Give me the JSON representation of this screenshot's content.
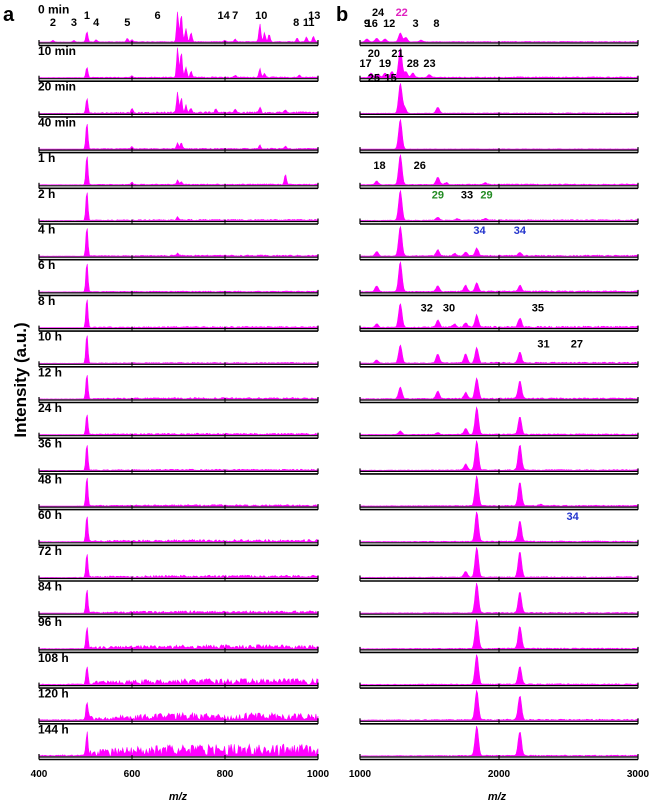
{
  "figure": {
    "panel_a_letter": "a",
    "panel_b_letter": "b",
    "ylabel": "Intensity (a.u.)",
    "spectrum_color": "#ff00ff",
    "time_labels": [
      "0 min",
      "10 min",
      "20 min",
      "40 min",
      "1 h",
      "2 h",
      "4 h",
      "6 h",
      "8 h",
      "10 h",
      "12 h",
      "24 h",
      "36 h",
      "48 h",
      "60 h",
      "72 h",
      "84 h",
      "96 h",
      "108 h",
      "120 h",
      "144 h"
    ]
  },
  "chart_data": [
    {
      "type": "line",
      "panel": "a",
      "xlabel": "m/z",
      "xlim": [
        400,
        1000
      ],
      "xticks": [
        "400",
        "600",
        "800",
        "1000"
      ],
      "ylabel": "Intensity (a.u.)",
      "y_scale": "relative, each trace normalized to its own strongest peak",
      "series_names": [
        "0 min",
        "10 min",
        "20 min",
        "40 min",
        "1 h",
        "2 h",
        "4 h",
        "6 h",
        "8 h",
        "10 h",
        "12 h",
        "24 h",
        "36 h",
        "48 h",
        "60 h",
        "72 h",
        "84 h",
        "96 h",
        "108 h",
        "120 h",
        "144 h"
      ],
      "peak_labels": [
        {
          "text": "2",
          "x": 430,
          "color": "#000000"
        },
        {
          "text": "3",
          "x": 475,
          "color": "#000000"
        },
        {
          "text": "1",
          "x": 503,
          "color": "#000000"
        },
        {
          "text": "4",
          "x": 523,
          "color": "#000000"
        },
        {
          "text": "5",
          "x": 590,
          "color": "#000000"
        },
        {
          "text": "6",
          "x": 655,
          "color": "#000000"
        },
        {
          "text": "14",
          "x": 797,
          "color": "#000000"
        },
        {
          "text": "7",
          "x": 822,
          "color": "#000000"
        },
        {
          "text": "10",
          "x": 878,
          "color": "#000000"
        },
        {
          "text": "8",
          "x": 953,
          "color": "#000000"
        },
        {
          "text": "11",
          "x": 980,
          "color": "#000000"
        },
        {
          "text": "13",
          "x": 992,
          "color": "#000000"
        }
      ],
      "traces": [
        {
          "peaks": [
            [
              430,
              0.06
            ],
            [
              475,
              0.05
            ],
            [
              503,
              0.35
            ],
            [
              523,
              0.08
            ],
            [
              590,
              0.12
            ],
            [
              600,
              0.08
            ],
            [
              698,
              1.0
            ],
            [
              706,
              0.95
            ],
            [
              716,
              0.45
            ],
            [
              727,
              0.3
            ],
            [
              800,
              0.05
            ],
            [
              822,
              0.1
            ],
            [
              875,
              0.6
            ],
            [
              885,
              0.3
            ],
            [
              895,
              0.25
            ],
            [
              955,
              0.12
            ],
            [
              975,
              0.15
            ],
            [
              990,
              0.18
            ]
          ],
          "noise": 0.02
        },
        {
          "peaks": [
            [
              503,
              0.35
            ],
            [
              600,
              0.06
            ],
            [
              698,
              1.0
            ],
            [
              706,
              0.85
            ],
            [
              716,
              0.35
            ],
            [
              727,
              0.2
            ],
            [
              822,
              0.08
            ],
            [
              875,
              0.3
            ],
            [
              885,
              0.12
            ],
            [
              960,
              0.08
            ]
          ],
          "noise": 0.03
        },
        {
          "peaks": [
            [
              503,
              0.5
            ],
            [
              600,
              0.15
            ],
            [
              698,
              0.7
            ],
            [
              706,
              0.5
            ],
            [
              716,
              0.25
            ],
            [
              727,
              0.15
            ],
            [
              780,
              0.1
            ],
            [
              822,
              0.1
            ],
            [
              875,
              0.2
            ],
            [
              930,
              0.1
            ]
          ],
          "noise": 0.06
        },
        {
          "peaks": [
            [
              503,
              0.9
            ],
            [
              600,
              0.08
            ],
            [
              698,
              0.2
            ],
            [
              706,
              0.2
            ],
            [
              875,
              0.12
            ],
            [
              930,
              0.08
            ]
          ],
          "noise": 0.03
        },
        {
          "peaks": [
            [
              503,
              1.0
            ],
            [
              600,
              0.08
            ],
            [
              698,
              0.15
            ],
            [
              706,
              0.1
            ],
            [
              930,
              0.35
            ]
          ],
          "noise": 0.03
        },
        {
          "peaks": [
            [
              503,
              1.0
            ],
            [
              698,
              0.1
            ]
          ],
          "noise": 0.04
        },
        {
          "peaks": [
            [
              503,
              1.0
            ],
            [
              698,
              0.08
            ]
          ],
          "noise": 0.04
        },
        {
          "peaks": [
            [
              503,
              1.0
            ]
          ],
          "noise": 0.03
        },
        {
          "peaks": [
            [
              503,
              1.0
            ]
          ],
          "noise": 0.04
        },
        {
          "peaks": [
            [
              503,
              1.0
            ]
          ],
          "noise": 0.03
        },
        {
          "peaks": [
            [
              503,
              0.85
            ]
          ],
          "noise": 0.05
        },
        {
          "peaks": [
            [
              503,
              0.7
            ]
          ],
          "noise": 0.05
        },
        {
          "peaks": [
            [
              503,
              0.9
            ]
          ],
          "noise": 0.04
        },
        {
          "peaks": [
            [
              503,
              1.0
            ]
          ],
          "noise": 0.05
        },
        {
          "peaks": [
            [
              503,
              0.9
            ]
          ],
          "noise": 0.08
        },
        {
          "peaks": [
            [
              503,
              0.8
            ]
          ],
          "noise": 0.08
        },
        {
          "peaks": [
            [
              503,
              0.8
            ]
          ],
          "noise": 0.08
        },
        {
          "peaks": [
            [
              503,
              0.7
            ]
          ],
          "noise": 0.14
        },
        {
          "peaks": [
            [
              503,
              0.6
            ]
          ],
          "noise": 0.2
        },
        {
          "peaks": [
            [
              503,
              0.6
            ]
          ],
          "noise": 0.25
        },
        {
          "peaks": [
            [
              503,
              0.7
            ]
          ],
          "noise": 0.4
        }
      ]
    },
    {
      "type": "line",
      "panel": "b",
      "xlabel": "m/z",
      "xlim": [
        1000,
        3000
      ],
      "xticks": [
        "1000",
        "2000",
        "3000"
      ],
      "y_scale": "relative, each trace normalized to its own strongest peak",
      "series_names": [
        "0 min",
        "10 min",
        "20 min",
        "40 min",
        "1 h",
        "2 h",
        "4 h",
        "6 h",
        "8 h",
        "10 h",
        "12 h",
        "24 h",
        "36 h",
        "48 h",
        "60 h",
        "72 h",
        "84 h",
        "96 h",
        "108 h",
        "120 h",
        "144 h"
      ],
      "peak_labels": [
        {
          "text": "9",
          "x": 1050,
          "row": 0,
          "color": "#000000"
        },
        {
          "text": "16",
          "x": 1085,
          "row": 0,
          "color": "#000000"
        },
        {
          "text": "24",
          "x": 1130,
          "row": 0,
          "color": "#000000"
        },
        {
          "text": "12",
          "x": 1210,
          "row": 0,
          "color": "#000000"
        },
        {
          "text": "22",
          "x": 1300,
          "row": 0,
          "color": "#e020c0"
        },
        {
          "text": "3",
          "x": 1400,
          "row": 0,
          "color": "#000000"
        },
        {
          "text": "8",
          "x": 1550,
          "row": 0,
          "color": "#000000"
        },
        {
          "text": "20",
          "x": 1100,
          "row": 1,
          "color": "#000000"
        },
        {
          "text": "17",
          "x": 1040,
          "row": 1,
          "color": "#000000"
        },
        {
          "text": "19",
          "x": 1180,
          "row": 1,
          "color": "#000000"
        },
        {
          "text": "21",
          "x": 1270,
          "row": 1,
          "color": "#000000"
        },
        {
          "text": "28",
          "x": 1380,
          "row": 1,
          "color": "#000000"
        },
        {
          "text": "23",
          "x": 1500,
          "row": 1,
          "color": "#000000"
        },
        {
          "text": "25",
          "x": 1100,
          "row": 2,
          "color": "#000000"
        },
        {
          "text": "15",
          "x": 1220,
          "row": 2,
          "color": "#000000"
        },
        {
          "text": "18",
          "x": 1140,
          "row": 4,
          "color": "#000000"
        },
        {
          "text": "26",
          "x": 1430,
          "row": 4,
          "color": "#000000"
        },
        {
          "text": "29",
          "x": 1560,
          "row": 5,
          "color": "#228b22"
        },
        {
          "text": "33",
          "x": 1770,
          "row": 5,
          "color": "#000000"
        },
        {
          "text": "29",
          "x": 1910,
          "row": 5,
          "color": "#228b22"
        },
        {
          "text": "34",
          "x": 1860,
          "row": 6,
          "color": "#2233cc"
        },
        {
          "text": "34",
          "x": 2150,
          "row": 6,
          "color": "#2233cc"
        },
        {
          "text": "32",
          "x": 1480,
          "row": 8,
          "color": "#000000"
        },
        {
          "text": "30",
          "x": 1640,
          "row": 8,
          "color": "#000000"
        },
        {
          "text": "35",
          "x": 2280,
          "row": 8,
          "color": "#000000"
        },
        {
          "text": "31",
          "x": 2320,
          "row": 9,
          "color": "#000000"
        },
        {
          "text": "27",
          "x": 2560,
          "row": 9,
          "color": "#000000"
        },
        {
          "text": "34",
          "x": 2530,
          "row": 14,
          "color": "#2233cc"
        }
      ],
      "traces": [
        {
          "peaks": [
            [
              1050,
              0.1
            ],
            [
              1120,
              0.12
            ],
            [
              1180,
              0.1
            ],
            [
              1290,
              0.3
            ],
            [
              1330,
              0.15
            ],
            [
              1440,
              0.06
            ]
          ],
          "noise": 0.02
        },
        {
          "peaks": [
            [
              1080,
              0.15
            ],
            [
              1130,
              0.12
            ],
            [
              1180,
              0.15
            ],
            [
              1230,
              0.2
            ],
            [
              1290,
              1.0
            ],
            [
              1330,
              0.2
            ],
            [
              1380,
              0.15
            ],
            [
              1500,
              0.1
            ]
          ],
          "noise": 0.03
        },
        {
          "peaks": [
            [
              1290,
              1.0
            ],
            [
              1320,
              0.2
            ],
            [
              1560,
              0.2
            ]
          ],
          "noise": 0.02
        },
        {
          "peaks": [
            [
              1290,
              1.0
            ]
          ],
          "noise": 0.01
        },
        {
          "peaks": [
            [
              1120,
              0.12
            ],
            [
              1290,
              1.0
            ],
            [
              1560,
              0.25
            ],
            [
              1620,
              0.06
            ],
            [
              1900,
              0.05
            ]
          ],
          "noise": 0.03
        },
        {
          "peaks": [
            [
              1290,
              1.0
            ],
            [
              1560,
              0.1
            ],
            [
              1700,
              0.05
            ],
            [
              1900,
              0.06
            ]
          ],
          "noise": 0.03
        },
        {
          "peaks": [
            [
              1120,
              0.15
            ],
            [
              1290,
              1.0
            ],
            [
              1560,
              0.2
            ],
            [
              1680,
              0.08
            ],
            [
              1760,
              0.12
            ],
            [
              1840,
              0.25
            ],
            [
              2150,
              0.12
            ]
          ],
          "noise": 0.04
        },
        {
          "peaks": [
            [
              1120,
              0.2
            ],
            [
              1290,
              1.0
            ],
            [
              1560,
              0.2
            ],
            [
              1760,
              0.2
            ],
            [
              1840,
              0.3
            ],
            [
              2150,
              0.2
            ]
          ],
          "noise": 0.04
        },
        {
          "peaks": [
            [
              1120,
              0.12
            ],
            [
              1290,
              0.8
            ],
            [
              1560,
              0.25
            ],
            [
              1680,
              0.1
            ],
            [
              1760,
              0.15
            ],
            [
              1840,
              0.4
            ],
            [
              2150,
              0.3
            ]
          ],
          "noise": 0.05
        },
        {
          "peaks": [
            [
              1120,
              0.1
            ],
            [
              1290,
              0.6
            ],
            [
              1560,
              0.3
            ],
            [
              1760,
              0.3
            ],
            [
              1840,
              0.5
            ],
            [
              2150,
              0.35
            ]
          ],
          "noise": 0.04
        },
        {
          "peaks": [
            [
              1290,
              0.4
            ],
            [
              1560,
              0.25
            ],
            [
              1760,
              0.2
            ],
            [
              1840,
              0.7
            ],
            [
              2150,
              0.6
            ]
          ],
          "noise": 0.04
        },
        {
          "peaks": [
            [
              1290,
              0.12
            ],
            [
              1560,
              0.06
            ],
            [
              1760,
              0.2
            ],
            [
              1840,
              0.9
            ],
            [
              2150,
              0.6
            ]
          ],
          "noise": 0.03
        },
        {
          "peaks": [
            [
              1760,
              0.2
            ],
            [
              1840,
              1.0
            ],
            [
              2150,
              0.85
            ]
          ],
          "noise": 0.03
        },
        {
          "peaks": [
            [
              1840,
              1.0
            ],
            [
              2150,
              0.8
            ],
            [
              2300,
              0.05
            ]
          ],
          "noise": 0.03
        },
        {
          "peaks": [
            [
              1840,
              1.0
            ],
            [
              2150,
              0.7
            ]
          ],
          "noise": 0.03
        },
        {
          "peaks": [
            [
              1760,
              0.2
            ],
            [
              1840,
              1.0
            ],
            [
              2150,
              0.85
            ]
          ],
          "noise": 0.03
        },
        {
          "peaks": [
            [
              1840,
              1.0
            ],
            [
              2150,
              0.7
            ]
          ],
          "noise": 0.03
        },
        {
          "peaks": [
            [
              1840,
              1.0
            ],
            [
              2150,
              0.75
            ]
          ],
          "noise": 0.03
        },
        {
          "peaks": [
            [
              1840,
              1.0
            ],
            [
              2150,
              0.6
            ]
          ],
          "noise": 0.03
        },
        {
          "peaks": [
            [
              1840,
              1.0
            ],
            [
              2150,
              0.8
            ]
          ],
          "noise": 0.04
        },
        {
          "peaks": [
            [
              1840,
              1.0
            ],
            [
              2150,
              0.8
            ]
          ],
          "noise": 0.03
        }
      ]
    }
  ]
}
